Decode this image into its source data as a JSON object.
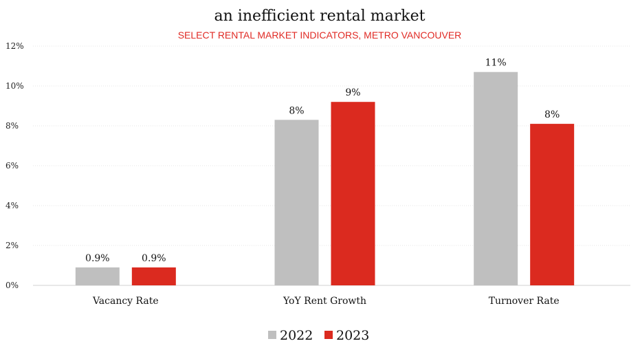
{
  "chart_data": {
    "type": "bar",
    "title": "an inefficient rental market",
    "subtitle": "SELECT RENTAL MARKET INDICATORS, METRO VANCOUVER",
    "xlabel": "",
    "ylabel": "",
    "ylim": [
      0,
      12
    ],
    "yticks": [
      0,
      2,
      4,
      6,
      8,
      10,
      12
    ],
    "ytick_labels": [
      "0%",
      "2%",
      "4%",
      "6%",
      "8%",
      "10%",
      "12%"
    ],
    "grid": true,
    "legend_position": "bottom",
    "categories": [
      "Vacancy Rate",
      "YoY Rent Growth",
      "Turnover Rate"
    ],
    "series": [
      {
        "name": "2022",
        "color": "#bfbfbf",
        "values": [
          0.9,
          8.3,
          10.7
        ],
        "labels": [
          "0.9%",
          "8%",
          "11%"
        ]
      },
      {
        "name": "2023",
        "color": "#db2a1f",
        "values": [
          0.9,
          9.2,
          8.1
        ],
        "labels": [
          "0.9%",
          "9%",
          "8%"
        ]
      }
    ]
  }
}
